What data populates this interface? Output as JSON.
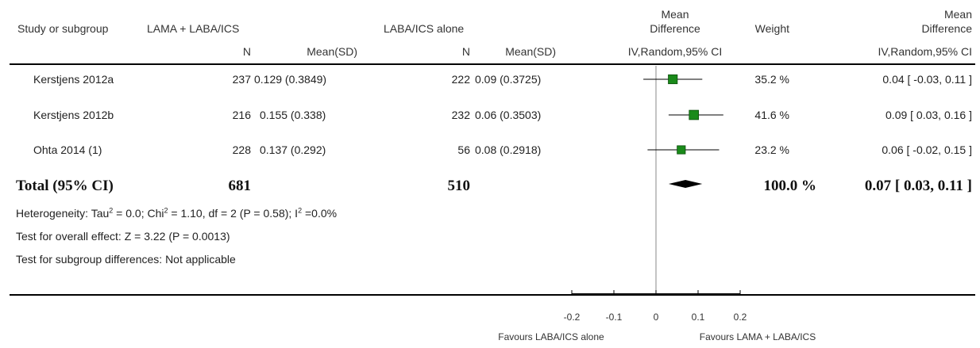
{
  "header": {
    "study_or_subgroup": "Study or subgroup",
    "group1": "LAMA + LABA/ICS",
    "group2": "LABA/ICS alone",
    "md_line1": "Mean",
    "md_line2": "Difference",
    "weight": "Weight",
    "md2_line1": "Mean",
    "md2_line2": "Difference",
    "n1": "N",
    "mean1": "Mean(SD)",
    "n2": "N",
    "mean2": "Mean(SD)",
    "method": "IV,Random,95% CI",
    "method2": "IV,Random,95% CI"
  },
  "studies": [
    {
      "name": "Kerstjens 2012a",
      "n1": "237",
      "m1": "0.129 (0.3849)",
      "n2": "222",
      "m2": "0.09 (0.3725)",
      "weight": "35.2 %",
      "ci": "0.04 [ -0.03, 0.11 ]"
    },
    {
      "name": "Kerstjens 2012b",
      "n1": "216",
      "m1": "0.155 (0.338)",
      "n2": "232",
      "m2": "0.06 (0.3503)",
      "weight": "41.6 %",
      "ci": "0.09 [ 0.03, 0.16 ]"
    },
    {
      "name": "Ohta 2014 (1)",
      "n1": "228",
      "m1": "0.137 (0.292)",
      "n2": "56",
      "m2": "0.08 (0.2918)",
      "weight": "23.2 %",
      "ci": "0.06 [ -0.02, 0.15 ]"
    }
  ],
  "total": {
    "label": "Total (95% CI)",
    "n1": "681",
    "n2": "510",
    "weight": "100.0 %",
    "ci": "0.07 [ 0.03, 0.11 ]"
  },
  "heterogeneity": {
    "prefix": "Heterogeneity: Tau",
    "mid1": " = 0.0; Chi",
    "mid2": " = 1.10, df = 2 (P = 0.58); I",
    "suffix": " =0.0%",
    "sup": "2"
  },
  "overall_effect": "Test for overall effect: Z = 3.22 (P = 0.0013)",
  "subgroup_diff": "Test for subgroup differences: Not applicable",
  "axis": {
    "favours_left": "Favours LABA/ICS alone",
    "favours_right": "Favours LAMA + LABA/ICS"
  },
  "chart_data": {
    "type": "forest",
    "xlim": [
      -0.2,
      0.2
    ],
    "ticks": [
      -0.2,
      -0.1,
      0,
      0.1,
      0.2
    ],
    "tick_labels": [
      "-0.2",
      "-0.1",
      "0",
      "0.1",
      "0.2"
    ],
    "marker_color": "#1a8a1a",
    "studies": [
      {
        "name": "Kerstjens 2012a",
        "estimate": 0.04,
        "lower": -0.03,
        "upper": 0.11,
        "weight": 35.2
      },
      {
        "name": "Kerstjens 2012b",
        "estimate": 0.09,
        "lower": 0.03,
        "upper": 0.16,
        "weight": 41.6
      },
      {
        "name": "Ohta 2014 (1)",
        "estimate": 0.06,
        "lower": -0.02,
        "upper": 0.15,
        "weight": 23.2
      }
    ],
    "total": {
      "estimate": 0.07,
      "lower": 0.03,
      "upper": 0.11
    }
  }
}
